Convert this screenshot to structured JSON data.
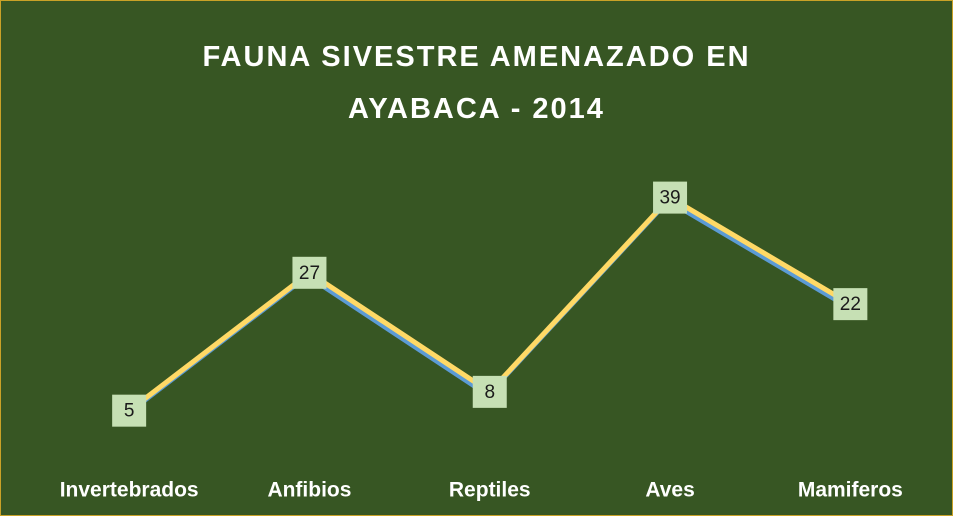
{
  "chart_data": {
    "type": "line",
    "title": "FAUNA SIVESTRE AMENAZADO EN AYABACA - 2014",
    "categories": [
      "Invertebrados",
      "Anfibios",
      "Reptiles",
      "Aves",
      "Mamiferos"
    ],
    "values": [
      5,
      27,
      8,
      39,
      22
    ],
    "color": "#ffd966",
    "shadow_color": "#5b9bd5",
    "label_box_color": "#c6e0b4",
    "drop_lines": true,
    "ylim": [
      0,
      45
    ]
  }
}
